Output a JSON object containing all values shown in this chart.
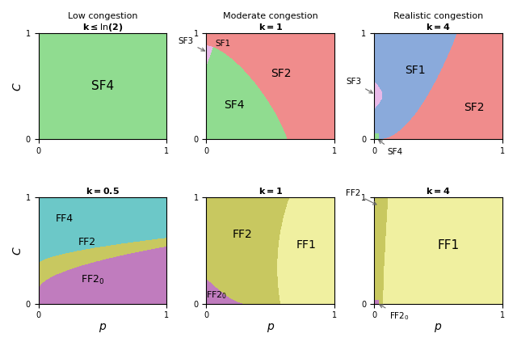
{
  "colors": {
    "SF1": "#8aaadb",
    "SF2": "#f08c8c",
    "SF3": "#e8b8e8",
    "SF4": "#90dc90",
    "FF1": "#f0f0a0",
    "FF2": "#c8c860",
    "FF2_0": "#c07cbe",
    "FF4": "#6cc8c8"
  },
  "row_titles_top": [
    "Low congestion",
    "Moderate congestion",
    "Realistic congestion"
  ],
  "row_subtitles_top": [
    "$\\mathbf{k \\leq \\ln(2)}$",
    "$\\mathbf{k = 1}$",
    "$\\mathbf{k = 4}$"
  ],
  "row_subtitles_bottom": [
    "$\\mathbf{k = 0.5}$",
    "$\\mathbf{k = 1}$",
    "$\\mathbf{k = 4}$"
  ],
  "xlabel": "$p$",
  "ylabel": "$C$"
}
